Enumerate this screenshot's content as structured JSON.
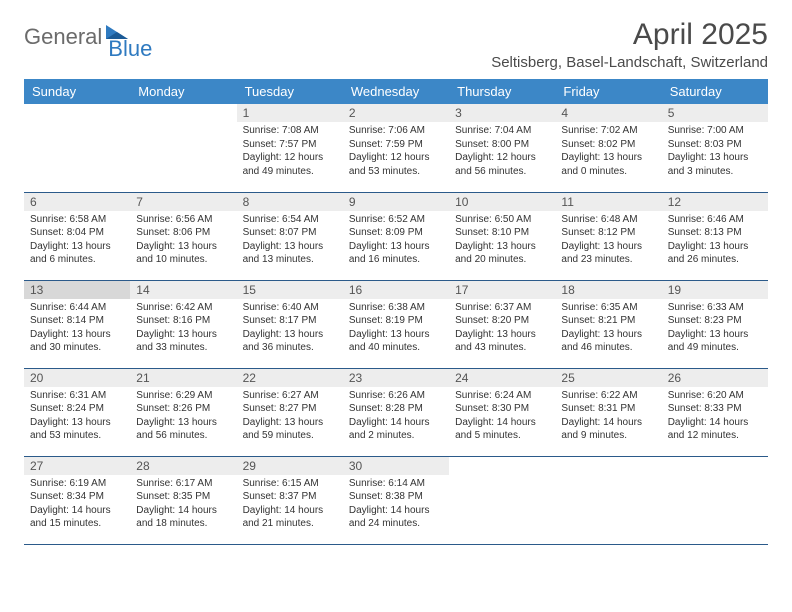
{
  "logo": {
    "text_general": "General",
    "text_blue": "Blue"
  },
  "title": {
    "month": "April 2025",
    "location": "Seltisberg, Basel-Landschaft, Switzerland"
  },
  "colors": {
    "header_bg": "#3c87c7",
    "header_text": "#ffffff",
    "daynum_bg": "#ededed",
    "row_border": "#2b5a8a",
    "logo_gray": "#6b6b6b",
    "logo_blue": "#2f7ac0"
  },
  "weekdays": [
    "Sunday",
    "Monday",
    "Tuesday",
    "Wednesday",
    "Thursday",
    "Friday",
    "Saturday"
  ],
  "today_day": 13,
  "first_weekday_index": 2,
  "days": [
    {
      "n": 1,
      "sunrise": "7:08 AM",
      "sunset": "7:57 PM",
      "daylight": "12 hours and 49 minutes."
    },
    {
      "n": 2,
      "sunrise": "7:06 AM",
      "sunset": "7:59 PM",
      "daylight": "12 hours and 53 minutes."
    },
    {
      "n": 3,
      "sunrise": "7:04 AM",
      "sunset": "8:00 PM",
      "daylight": "12 hours and 56 minutes."
    },
    {
      "n": 4,
      "sunrise": "7:02 AM",
      "sunset": "8:02 PM",
      "daylight": "13 hours and 0 minutes."
    },
    {
      "n": 5,
      "sunrise": "7:00 AM",
      "sunset": "8:03 PM",
      "daylight": "13 hours and 3 minutes."
    },
    {
      "n": 6,
      "sunrise": "6:58 AM",
      "sunset": "8:04 PM",
      "daylight": "13 hours and 6 minutes."
    },
    {
      "n": 7,
      "sunrise": "6:56 AM",
      "sunset": "8:06 PM",
      "daylight": "13 hours and 10 minutes."
    },
    {
      "n": 8,
      "sunrise": "6:54 AM",
      "sunset": "8:07 PM",
      "daylight": "13 hours and 13 minutes."
    },
    {
      "n": 9,
      "sunrise": "6:52 AM",
      "sunset": "8:09 PM",
      "daylight": "13 hours and 16 minutes."
    },
    {
      "n": 10,
      "sunrise": "6:50 AM",
      "sunset": "8:10 PM",
      "daylight": "13 hours and 20 minutes."
    },
    {
      "n": 11,
      "sunrise": "6:48 AM",
      "sunset": "8:12 PM",
      "daylight": "13 hours and 23 minutes."
    },
    {
      "n": 12,
      "sunrise": "6:46 AM",
      "sunset": "8:13 PM",
      "daylight": "13 hours and 26 minutes."
    },
    {
      "n": 13,
      "sunrise": "6:44 AM",
      "sunset": "8:14 PM",
      "daylight": "13 hours and 30 minutes."
    },
    {
      "n": 14,
      "sunrise": "6:42 AM",
      "sunset": "8:16 PM",
      "daylight": "13 hours and 33 minutes."
    },
    {
      "n": 15,
      "sunrise": "6:40 AM",
      "sunset": "8:17 PM",
      "daylight": "13 hours and 36 minutes."
    },
    {
      "n": 16,
      "sunrise": "6:38 AM",
      "sunset": "8:19 PM",
      "daylight": "13 hours and 40 minutes."
    },
    {
      "n": 17,
      "sunrise": "6:37 AM",
      "sunset": "8:20 PM",
      "daylight": "13 hours and 43 minutes."
    },
    {
      "n": 18,
      "sunrise": "6:35 AM",
      "sunset": "8:21 PM",
      "daylight": "13 hours and 46 minutes."
    },
    {
      "n": 19,
      "sunrise": "6:33 AM",
      "sunset": "8:23 PM",
      "daylight": "13 hours and 49 minutes."
    },
    {
      "n": 20,
      "sunrise": "6:31 AM",
      "sunset": "8:24 PM",
      "daylight": "13 hours and 53 minutes."
    },
    {
      "n": 21,
      "sunrise": "6:29 AM",
      "sunset": "8:26 PM",
      "daylight": "13 hours and 56 minutes."
    },
    {
      "n": 22,
      "sunrise": "6:27 AM",
      "sunset": "8:27 PM",
      "daylight": "13 hours and 59 minutes."
    },
    {
      "n": 23,
      "sunrise": "6:26 AM",
      "sunset": "8:28 PM",
      "daylight": "14 hours and 2 minutes."
    },
    {
      "n": 24,
      "sunrise": "6:24 AM",
      "sunset": "8:30 PM",
      "daylight": "14 hours and 5 minutes."
    },
    {
      "n": 25,
      "sunrise": "6:22 AM",
      "sunset": "8:31 PM",
      "daylight": "14 hours and 9 minutes."
    },
    {
      "n": 26,
      "sunrise": "6:20 AM",
      "sunset": "8:33 PM",
      "daylight": "14 hours and 12 minutes."
    },
    {
      "n": 27,
      "sunrise": "6:19 AM",
      "sunset": "8:34 PM",
      "daylight": "14 hours and 15 minutes."
    },
    {
      "n": 28,
      "sunrise": "6:17 AM",
      "sunset": "8:35 PM",
      "daylight": "14 hours and 18 minutes."
    },
    {
      "n": 29,
      "sunrise": "6:15 AM",
      "sunset": "8:37 PM",
      "daylight": "14 hours and 21 minutes."
    },
    {
      "n": 30,
      "sunrise": "6:14 AM",
      "sunset": "8:38 PM",
      "daylight": "14 hours and 24 minutes."
    }
  ],
  "labels": {
    "sunrise": "Sunrise:",
    "sunset": "Sunset:",
    "daylight": "Daylight:"
  }
}
